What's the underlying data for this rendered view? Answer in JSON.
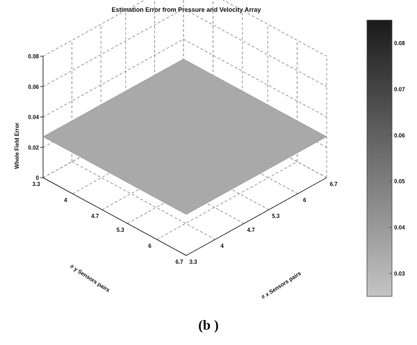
{
  "chart_data": {
    "type": "surface",
    "title": "Estimation Error from Pressure and Velocity Array",
    "xlabel": "# x Sensors pairs",
    "ylabel": "# y Sensors pairs",
    "zlabel": "Whole Field Error",
    "x_ticks": [
      "3.3",
      "4",
      "4.7",
      "5.3",
      "6",
      "6.7"
    ],
    "y_ticks": [
      "3.3",
      "4",
      "4.7",
      "5.3",
      "6",
      "6.7"
    ],
    "z_ticks": [
      "0",
      "0.02",
      "0.04",
      "0.06",
      "0.08"
    ],
    "xlim": [
      3.3,
      6.7
    ],
    "ylim": [
      3.3,
      6.7
    ],
    "zlim": [
      0,
      0.08
    ],
    "surface": {
      "x": [
        3.3,
        6.7
      ],
      "y": [
        3.3,
        6.7
      ],
      "z": [
        [
          0.027,
          0.027
        ],
        [
          0.027,
          0.027
        ]
      ]
    },
    "colorbar": {
      "ticks": [
        "0.03",
        "0.04",
        "0.05",
        "0.06",
        "0.07",
        "0.08"
      ],
      "range": [
        0.025,
        0.085
      ],
      "colormap": "gray",
      "color_low": "#c4c4c4",
      "color_high": "#1a1a1a"
    },
    "surface_color": "#a9a9a9",
    "grid": true,
    "panel_label": "(b )"
  }
}
